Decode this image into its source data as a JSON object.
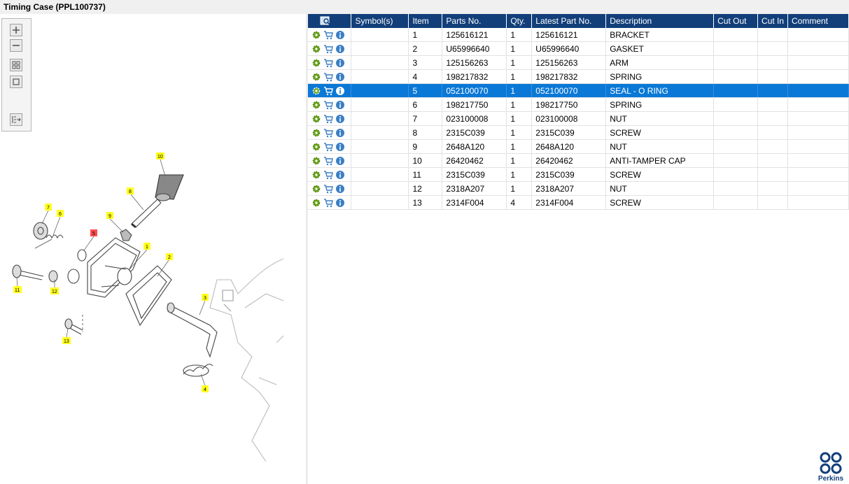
{
  "window": {
    "title": "Timing Case (PPL100737)"
  },
  "table": {
    "columns": [
      "Symbol(s)",
      "Item",
      "Parts No.",
      "Qty.",
      "Latest Part No.",
      "Description",
      "Cut Out",
      "Cut In",
      "Comment"
    ],
    "selected_item": "5",
    "rows": [
      {
        "item": "1",
        "part": "125616121",
        "qty": "1",
        "latest": "125616121",
        "desc": "BRACKET"
      },
      {
        "item": "2",
        "part": "U65996640",
        "qty": "1",
        "latest": "U65996640",
        "desc": "GASKET"
      },
      {
        "item": "3",
        "part": "125156263",
        "qty": "1",
        "latest": "125156263",
        "desc": "ARM"
      },
      {
        "item": "4",
        "part": "198217832",
        "qty": "1",
        "latest": "198217832",
        "desc": "SPRING"
      },
      {
        "item": "5",
        "part": "052100070",
        "qty": "1",
        "latest": "052100070",
        "desc": "SEAL - O RING"
      },
      {
        "item": "6",
        "part": "198217750",
        "qty": "1",
        "latest": "198217750",
        "desc": "SPRING"
      },
      {
        "item": "7",
        "part": "023100008",
        "qty": "1",
        "latest": "023100008",
        "desc": "NUT"
      },
      {
        "item": "8",
        "part": "2315C039",
        "qty": "1",
        "latest": "2315C039",
        "desc": "SCREW"
      },
      {
        "item": "9",
        "part": "2648A120",
        "qty": "1",
        "latest": "2648A120",
        "desc": "NUT"
      },
      {
        "item": "10",
        "part": "26420462",
        "qty": "1",
        "latest": "26420462",
        "desc": "ANTI-TAMPER CAP"
      },
      {
        "item": "11",
        "part": "2315C039",
        "qty": "1",
        "latest": "2315C039",
        "desc": "SCREW"
      },
      {
        "item": "12",
        "part": "2318A207",
        "qty": "1",
        "latest": "2318A207",
        "desc": "NUT"
      },
      {
        "item": "13",
        "part": "2314F004",
        "qty": "4",
        "latest": "2314F004",
        "desc": "SCREW"
      }
    ]
  },
  "drawing": {
    "callouts": [
      "1",
      "2",
      "3",
      "4",
      "5",
      "6",
      "7",
      "8",
      "9",
      "10",
      "11",
      "12",
      "13"
    ],
    "highlighted_callout": "5"
  },
  "toolbox": {
    "icons": [
      "zoom-in-icon",
      "zoom-out-icon",
      "fit-grid-icon",
      "fit-page-icon",
      "toggle-list-icon"
    ]
  },
  "brand": {
    "name": "Perkins",
    "color": "#123f7a"
  },
  "colors": {
    "header": "#123f7a",
    "selected_row": "#0a78d6",
    "callout": "#ffff1e",
    "callout_highlight": "#ff4d4d"
  }
}
